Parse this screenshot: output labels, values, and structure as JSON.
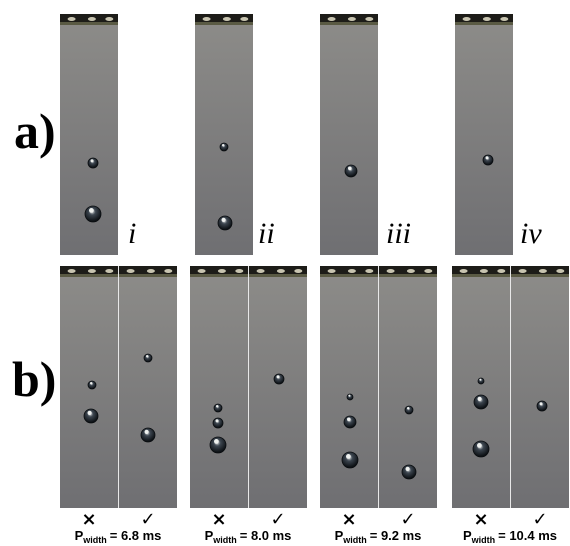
{
  "panel_a": {
    "label": "a)",
    "frames": [
      "i",
      "ii",
      "iii",
      "iv"
    ]
  },
  "panel_b": {
    "label": "b)",
    "groups": [
      {
        "fail": "×",
        "pass": "✓",
        "symbol": "P",
        "subscript": "width",
        "value": "= 6.8 ms"
      },
      {
        "fail": "×",
        "pass": "✓",
        "symbol": "P",
        "subscript": "width",
        "value": "= 8.0 ms"
      },
      {
        "fail": "×",
        "pass": "✓",
        "symbol": "P",
        "subscript": "width",
        "value": "= 9.2 ms"
      },
      {
        "fail": "×",
        "pass": "✓",
        "symbol": "P",
        "subscript": "width",
        "value": "= 10.4 ms"
      }
    ]
  }
}
